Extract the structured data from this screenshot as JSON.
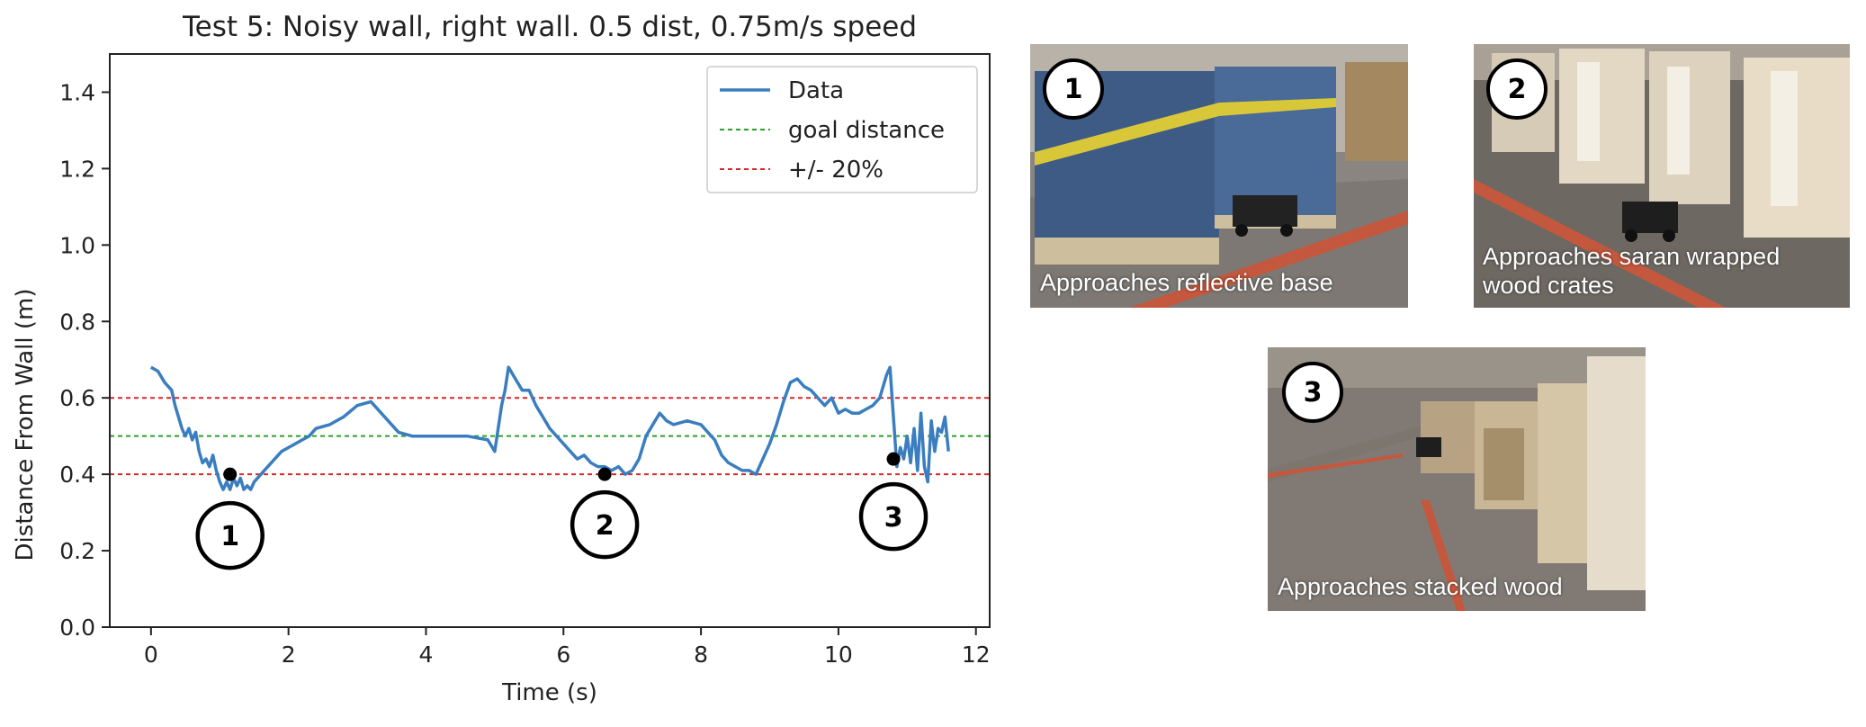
{
  "chart_data": {
    "type": "line",
    "title": "Test 5: Noisy wall, right wall. 0.5 dist, 0.75m/s speed",
    "xlabel": "Time (s)",
    "ylabel": "Distance From Wall (m)",
    "xlim": [
      -0.6,
      12.2
    ],
    "ylim": [
      0,
      1.5
    ],
    "xticks": [
      0,
      2,
      4,
      6,
      8,
      10,
      12
    ],
    "yticks": [
      0.0,
      0.2,
      0.4,
      0.6,
      0.8,
      1.0,
      1.2,
      1.4
    ],
    "grid": false,
    "legend_position": "top-right",
    "series": [
      {
        "name": "Data",
        "color": "#3a7ebf",
        "style": "solid",
        "x": [
          0.0,
          0.1,
          0.2,
          0.3,
          0.35,
          0.4,
          0.45,
          0.5,
          0.55,
          0.6,
          0.65,
          0.7,
          0.75,
          0.8,
          0.85,
          0.9,
          0.95,
          1.0,
          1.05,
          1.1,
          1.15,
          1.2,
          1.25,
          1.3,
          1.35,
          1.4,
          1.45,
          1.5,
          1.6,
          1.7,
          1.8,
          1.9,
          2.0,
          2.1,
          2.2,
          2.3,
          2.4,
          2.6,
          2.8,
          3.0,
          3.2,
          3.4,
          3.6,
          3.8,
          4.0,
          4.3,
          4.6,
          4.9,
          5.0,
          5.05,
          5.1,
          5.15,
          5.2,
          5.3,
          5.4,
          5.5,
          5.6,
          5.7,
          5.8,
          5.9,
          6.0,
          6.1,
          6.2,
          6.3,
          6.4,
          6.5,
          6.6,
          6.7,
          6.8,
          6.9,
          7.0,
          7.1,
          7.2,
          7.3,
          7.4,
          7.5,
          7.6,
          7.8,
          8.0,
          8.2,
          8.3,
          8.4,
          8.5,
          8.6,
          8.7,
          8.8,
          8.9,
          9.0,
          9.1,
          9.2,
          9.3,
          9.4,
          9.5,
          9.6,
          9.7,
          9.8,
          9.9,
          10.0,
          10.1,
          10.2,
          10.3,
          10.4,
          10.5,
          10.6,
          10.7,
          10.75,
          10.8,
          10.85,
          10.9,
          10.95,
          11.0,
          11.05,
          11.1,
          11.15,
          11.2,
          11.25,
          11.3,
          11.35,
          11.4,
          11.45,
          11.5,
          11.55,
          11.6
        ],
        "y": [
          0.68,
          0.67,
          0.64,
          0.62,
          0.58,
          0.55,
          0.52,
          0.5,
          0.52,
          0.49,
          0.51,
          0.46,
          0.43,
          0.44,
          0.42,
          0.45,
          0.41,
          0.38,
          0.36,
          0.38,
          0.36,
          0.39,
          0.37,
          0.39,
          0.36,
          0.37,
          0.36,
          0.38,
          0.4,
          0.42,
          0.44,
          0.46,
          0.47,
          0.48,
          0.49,
          0.5,
          0.52,
          0.53,
          0.55,
          0.58,
          0.59,
          0.55,
          0.51,
          0.5,
          0.5,
          0.5,
          0.5,
          0.49,
          0.46,
          0.52,
          0.58,
          0.62,
          0.68,
          0.65,
          0.62,
          0.62,
          0.58,
          0.55,
          0.52,
          0.5,
          0.48,
          0.46,
          0.44,
          0.45,
          0.43,
          0.42,
          0.42,
          0.41,
          0.42,
          0.4,
          0.41,
          0.44,
          0.5,
          0.53,
          0.56,
          0.54,
          0.53,
          0.54,
          0.53,
          0.49,
          0.45,
          0.43,
          0.42,
          0.41,
          0.41,
          0.4,
          0.44,
          0.48,
          0.53,
          0.59,
          0.64,
          0.65,
          0.63,
          0.62,
          0.6,
          0.58,
          0.6,
          0.56,
          0.57,
          0.56,
          0.56,
          0.57,
          0.58,
          0.6,
          0.66,
          0.68,
          0.55,
          0.42,
          0.47,
          0.44,
          0.5,
          0.43,
          0.52,
          0.41,
          0.56,
          0.42,
          0.38,
          0.54,
          0.46,
          0.52,
          0.51,
          0.55,
          0.46
        ]
      },
      {
        "name": "goal distance",
        "color": "#2ca02c",
        "style": "dashed",
        "x": [
          -0.6,
          12.2
        ],
        "y": [
          0.5,
          0.5
        ]
      },
      {
        "name": "+/- 20%",
        "color": "#d62728",
        "style": "dashed",
        "x": [
          -0.6,
          12.2
        ],
        "y": [
          0.6,
          0.6
        ]
      },
      {
        "name": "",
        "color": "#d62728",
        "style": "dashed",
        "x": [
          -0.6,
          12.2
        ],
        "y": [
          0.4,
          0.4
        ]
      }
    ],
    "annotations": [
      {
        "label": "1",
        "x": 1.15,
        "y": 0.4
      },
      {
        "label": "2",
        "x": 6.6,
        "y": 0.4
      },
      {
        "label": "3",
        "x": 10.8,
        "y": 0.44
      }
    ]
  },
  "photos": [
    {
      "number": "1",
      "caption": "Approaches reflective base"
    },
    {
      "number": "2",
      "caption": "Approaches saran wrapped wood crates"
    },
    {
      "number": "3",
      "caption": "Approaches stacked wood"
    }
  ]
}
